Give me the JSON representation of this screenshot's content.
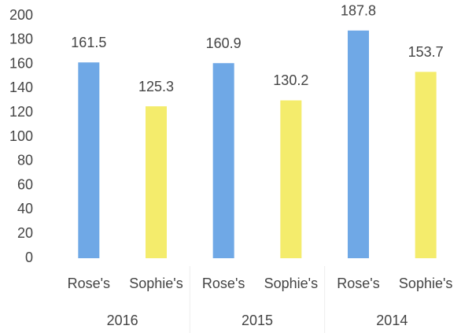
{
  "chart_data": {
    "type": "bar",
    "categories": [
      "2016",
      "2015",
      "2014"
    ],
    "series": [
      {
        "name": "Rose's",
        "color": "#6fa8e6",
        "values": [
          161.5,
          160.9,
          187.8
        ]
      },
      {
        "name": "Sophie's",
        "color": "#f4ec6c",
        "values": [
          125.3,
          130.2,
          153.7
        ]
      }
    ],
    "ylim": [
      0,
      200
    ],
    "yticks": [
      0,
      20,
      40,
      60,
      80,
      100,
      120,
      140,
      160,
      180,
      200
    ],
    "grid": false
  }
}
